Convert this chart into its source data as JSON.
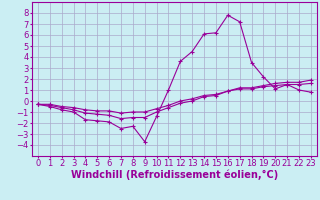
{
  "xlabel": "Windchill (Refroidissement éolien,°C)",
  "background_color": "#cbeef3",
  "grid_color": "#aaaacc",
  "line_color": "#990099",
  "x_hours": [
    0,
    1,
    2,
    3,
    4,
    5,
    6,
    7,
    8,
    9,
    10,
    11,
    12,
    13,
    14,
    15,
    16,
    17,
    18,
    19,
    20,
    21,
    22,
    23
  ],
  "series1": [
    -0.3,
    -0.5,
    -0.8,
    -1.0,
    -1.7,
    -1.8,
    -1.9,
    -2.5,
    -2.3,
    -3.7,
    -1.4,
    1.0,
    3.6,
    4.5,
    6.1,
    6.2,
    7.8,
    7.2,
    3.5,
    2.2,
    1.1,
    1.5,
    1.0,
    0.8
  ],
  "series2": [
    -0.3,
    -0.3,
    -0.5,
    -0.6,
    -0.8,
    -0.9,
    -0.9,
    -1.1,
    -1.0,
    -1.0,
    -0.7,
    -0.4,
    0.0,
    0.2,
    0.5,
    0.6,
    0.9,
    1.1,
    1.1,
    1.3,
    1.4,
    1.5,
    1.5,
    1.6
  ],
  "series3": [
    -0.3,
    -0.4,
    -0.6,
    -0.8,
    -1.1,
    -1.2,
    -1.3,
    -1.6,
    -1.5,
    -1.5,
    -1.0,
    -0.6,
    -0.2,
    0.0,
    0.4,
    0.5,
    0.9,
    1.2,
    1.2,
    1.4,
    1.6,
    1.7,
    1.7,
    1.9
  ],
  "ylim": [
    -5,
    9
  ],
  "yticks": [
    -4,
    -3,
    -2,
    -1,
    0,
    1,
    2,
    3,
    4,
    5,
    6,
    7,
    8
  ],
  "xticks": [
    0,
    1,
    2,
    3,
    4,
    5,
    6,
    7,
    8,
    9,
    10,
    11,
    12,
    13,
    14,
    15,
    16,
    17,
    18,
    19,
    20,
    21,
    22,
    23
  ],
  "marker": "+",
  "markersize": 3,
  "linewidth": 0.8,
  "font_size": 6,
  "xlabel_fontsize": 7
}
